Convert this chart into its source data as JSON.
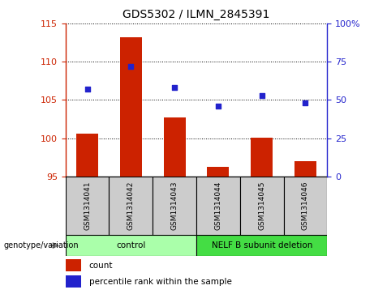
{
  "title": "GDS5302 / ILMN_2845391",
  "samples": [
    "GSM1314041",
    "GSM1314042",
    "GSM1314043",
    "GSM1314044",
    "GSM1314045",
    "GSM1314046"
  ],
  "counts": [
    100.6,
    113.2,
    102.7,
    96.2,
    100.1,
    97.0
  ],
  "percentile_ranks": [
    57,
    72,
    58,
    46,
    53,
    48
  ],
  "ylim_left": [
    95,
    115
  ],
  "ylim_right": [
    0,
    100
  ],
  "yticks_left": [
    95,
    100,
    105,
    110,
    115
  ],
  "yticks_right": [
    0,
    25,
    50,
    75,
    100
  ],
  "ytick_labels_right": [
    "0",
    "25",
    "50",
    "75",
    "100%"
  ],
  "groups": [
    {
      "label": "control",
      "indices": [
        0,
        1,
        2
      ],
      "color": "#aaffaa"
    },
    {
      "label": "NELF B subunit deletion",
      "indices": [
        3,
        4,
        5
      ],
      "color": "#44dd44"
    }
  ],
  "bar_color": "#cc2200",
  "dot_color": "#2222cc",
  "bar_width": 0.5,
  "grid_color": "black",
  "sample_bg_color": "#cccccc",
  "legend_items": [
    {
      "label": "count",
      "color": "#cc2200"
    },
    {
      "label": "percentile rank within the sample",
      "color": "#2222cc"
    }
  ],
  "genotype_label": "genotype/variation",
  "left_axis_color": "#cc2200",
  "right_axis_color": "#2222cc"
}
